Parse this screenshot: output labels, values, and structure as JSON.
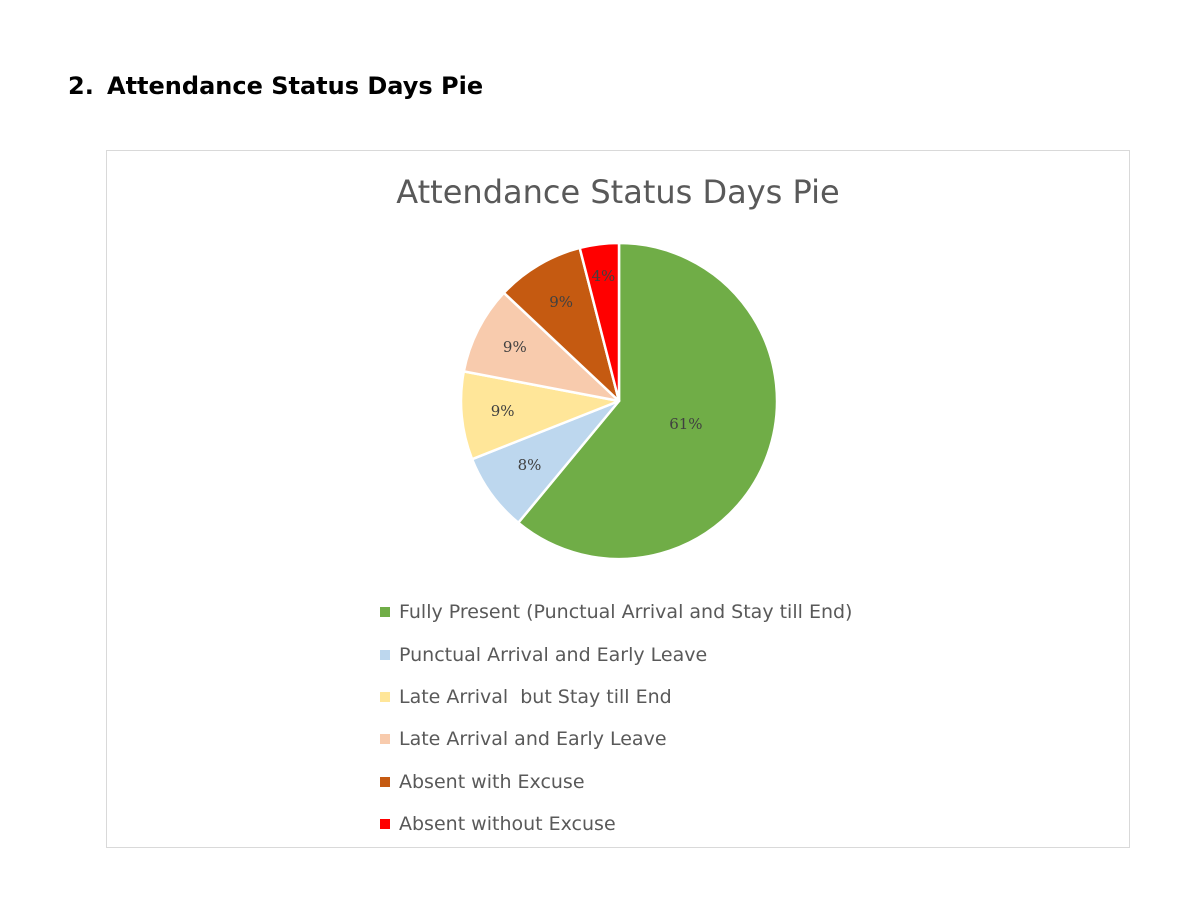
{
  "document": {
    "section_number": "2.",
    "heading": "Attendance Status Days Pie"
  },
  "chart_data": {
    "type": "pie",
    "title": "Attendance Status Days Pie",
    "start_angle": "12 o'clock",
    "direction": "clockwise",
    "legend_position": "bottom",
    "categories": [
      "Fully Present (Punctual Arrival and Stay till End)",
      "Punctual Arrival and Early Leave",
      "Late Arrival  but Stay till End",
      "Late Arrival and Early Leave",
      "Absent with Excuse",
      "Absent without Excuse"
    ],
    "values": [
      61,
      8,
      9,
      9,
      9,
      4
    ],
    "data_labels": [
      "61%",
      "8%",
      "9%",
      "9%",
      "9%",
      "4%"
    ],
    "colors": [
      "#70ad47",
      "#bdd7ee",
      "#ffe699",
      "#f8cbad",
      "#c55a11",
      "#ff0000"
    ]
  }
}
